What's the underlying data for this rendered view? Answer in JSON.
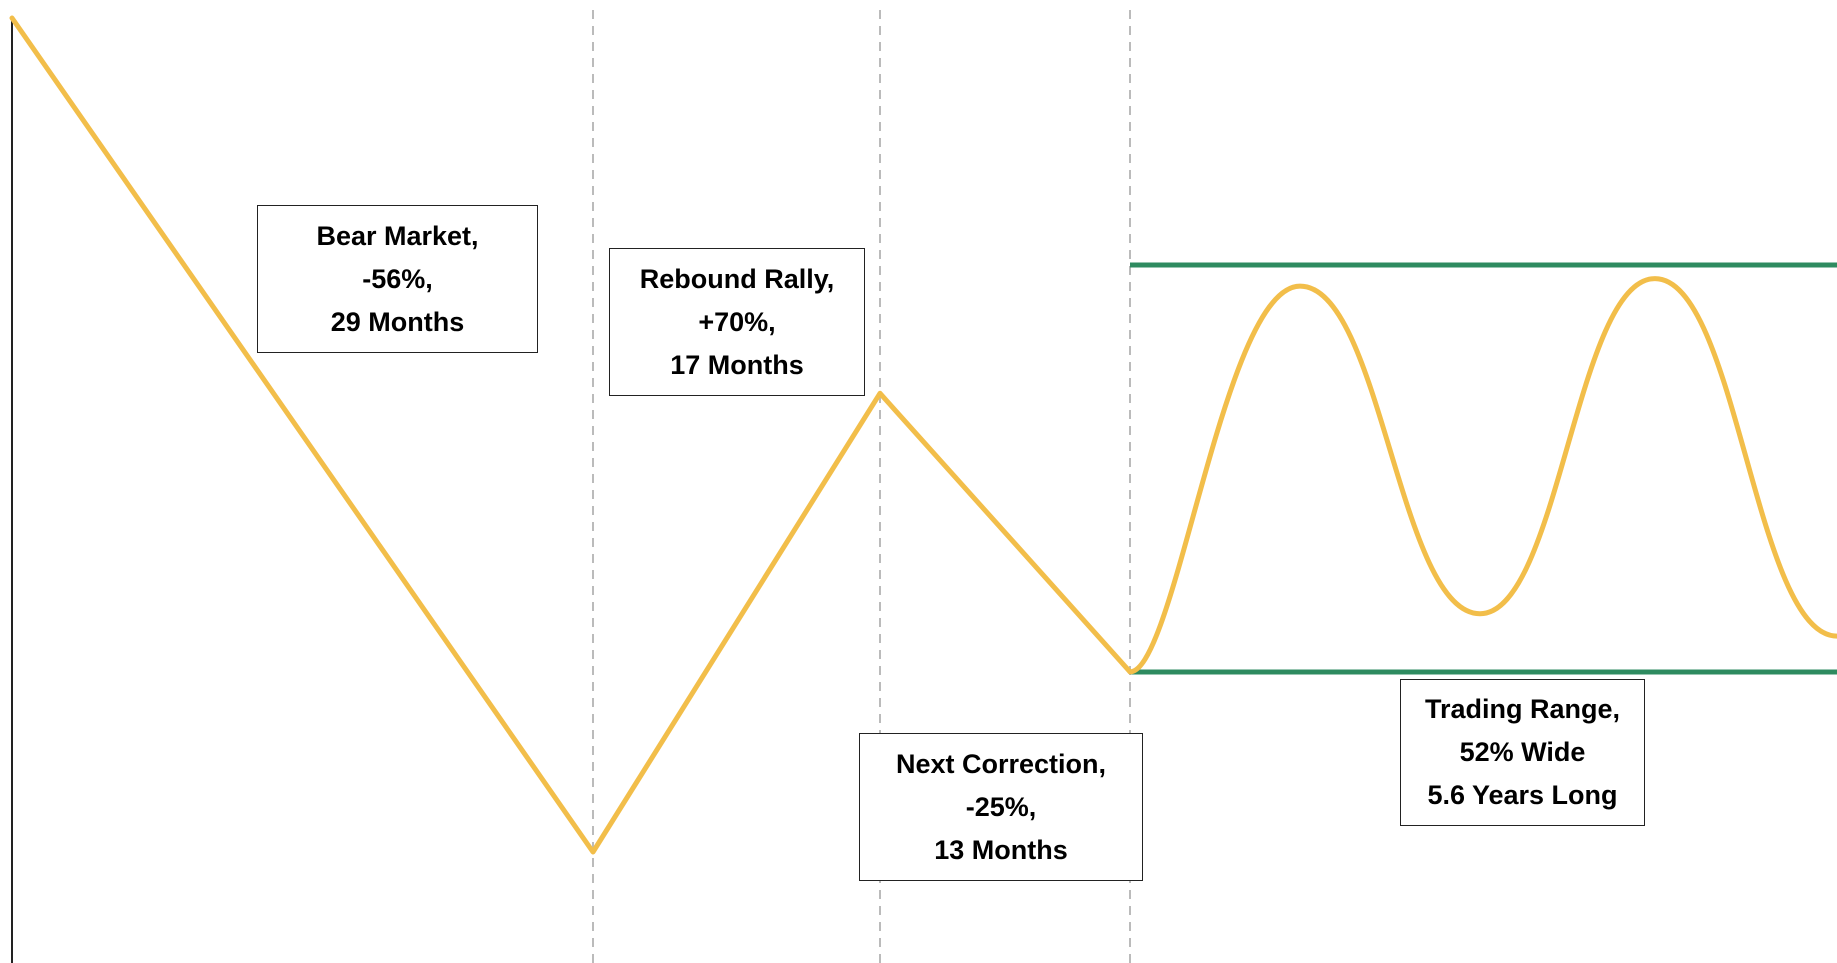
{
  "chart_data": {
    "type": "line",
    "title": "",
    "xlabel": "",
    "ylabel": "",
    "colors": {
      "price_line": "#F2BE4A",
      "range_lines": "#2E8B60",
      "phase_dividers": "#BBBBBB",
      "axis": "#222222"
    },
    "phases": [
      {
        "name": "bear-market",
        "lines": [
          "Bear Market,",
          "-56%,",
          "29 Months"
        ]
      },
      {
        "name": "rebound-rally",
        "lines": [
          "Rebound Rally,",
          "+70%,",
          "17 Months"
        ]
      },
      {
        "name": "next-correction",
        "lines": [
          "Next Correction,",
          "-25%,",
          "13 Months"
        ]
      },
      {
        "name": "trading-range",
        "lines": [
          "Trading Range,",
          "52% Wide",
          "5.6 Years Long"
        ]
      }
    ],
    "series": [
      {
        "values": [
          100,
          44,
          74.8,
          56.1,
          82,
          60,
          82.5,
          58.5
        ]
      }
    ],
    "grid": false,
    "legend": "none"
  }
}
